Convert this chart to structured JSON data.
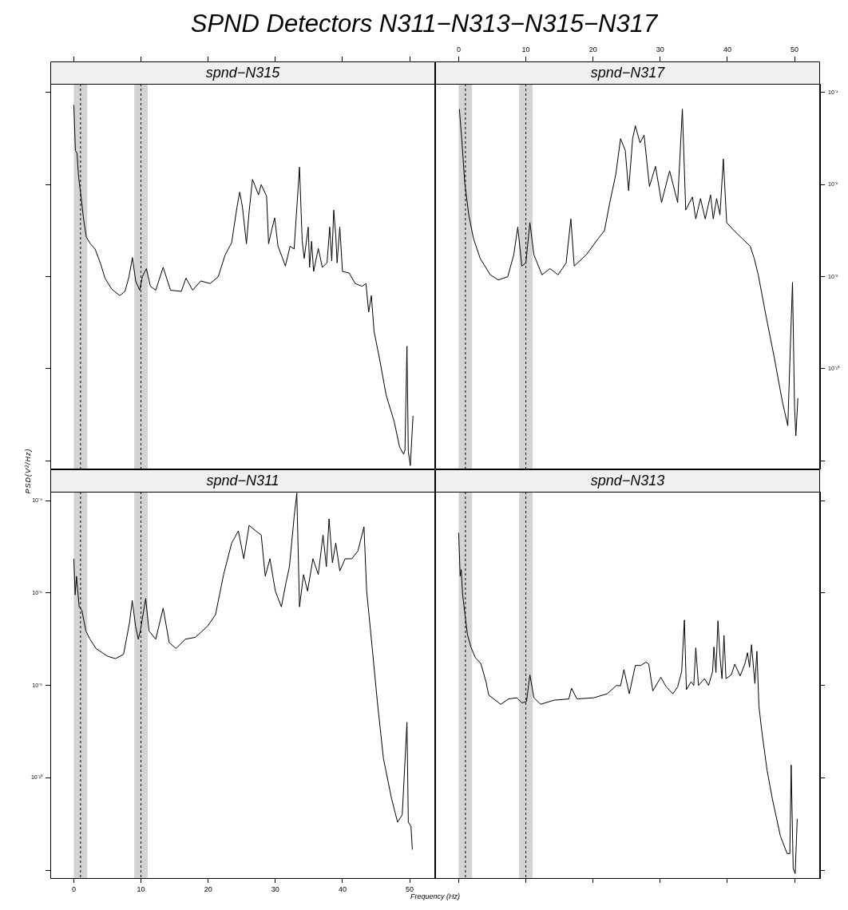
{
  "chart_data": [
    {
      "type": "line",
      "title": "SPND Detectors  N311−N313−N315−N317",
      "subtitle": "spnd−N315",
      "tick_labels": false,
      "xlim": [
        -3.5,
        53.8
      ],
      "xticks": [
        0,
        10,
        20,
        30,
        40,
        50
      ],
      "ylim": [
        6.8e-13,
        0.000155
      ],
      "log": true,
      "yticks": [
        {
          "value": 0.0001,
          "label": null
        },
        {
          "value": 1e-06,
          "label": null
        },
        {
          "value": 1e-08,
          "label": null
        },
        {
          "value": 1e-10,
          "label": null
        },
        {
          "value": 1e-12,
          "label": null
        }
      ],
      "bands": [
        {
          "axis": "x",
          "from": 0,
          "to": 2,
          "color": "#d3d3d3"
        },
        {
          "axis": "x",
          "from": 9,
          "to": 11,
          "color": "#d3d3d3"
        }
      ],
      "ref_lines": [
        {
          "axis": "x",
          "value": 1,
          "color": "#000000",
          "line_style": "dashed"
        },
        {
          "axis": "x",
          "value": 10,
          "color": "#000000",
          "line_style": "dashed"
        }
      ],
      "series": [
        {
          "color": "#000000",
          "x": [
            0,
            0.24,
            0.48,
            0.71,
            1.07,
            1.47,
            1.87,
            2.46,
            3.17,
            4.05,
            4.64,
            5.63,
            6.83,
            7.62,
            8.21,
            8.73,
            9.21,
            9.8,
            10.2,
            10.8,
            11.4,
            12.2,
            13.3,
            14.4,
            16.0,
            16.7,
            17.7,
            18.9,
            20.3,
            21.5,
            22.5,
            23.5,
            24.3,
            24.7,
            25.1,
            25.7,
            26.1,
            26.6,
            27.5,
            27.9,
            28.7,
            29.0,
            29.4,
            29.9,
            30.4,
            31.0,
            31.5,
            32.2,
            32.8,
            33.6,
            34.0,
            34.3,
            34.9,
            35.1,
            35.4,
            35.7,
            36.4,
            37.0,
            37.7,
            38.1,
            38.4,
            38.7,
            39.0,
            39.2,
            39.6,
            40.0,
            41.0,
            41.9,
            42.9,
            43.5,
            43.9,
            44.3,
            44.7,
            45.5,
            46.5,
            47.7,
            48.5,
            49.1,
            49.3,
            49.6,
            49.8,
            50.1,
            50.5
          ],
          "values": [
            5.4e-05,
            5.5e-06,
            4.8e-06,
            1.5e-06,
            5.6e-07,
            1.7e-07,
            7.2e-08,
            5.2e-08,
            4e-08,
            1.8e-08,
            9.3e-09,
            5.4e-09,
            3.9e-09,
            4.8e-09,
            1e-08,
            2.6e-08,
            8.1e-09,
            5.1e-09,
            1e-08,
            1.5e-08,
            6.2e-09,
            5.1e-09,
            1.6e-08,
            5.1e-09,
            4.8e-09,
            9.3e-09,
            5.1e-09,
            8.1e-09,
            7.1e-09,
            1e-08,
            2.9e-08,
            5.5e-08,
            3.3e-07,
            6.9e-07,
            3.3e-07,
            5.2e-08,
            2.6e-07,
            1.3e-06,
            6e-07,
            1e-06,
            5.6e-07,
            5.2e-08,
            9.5e-08,
            1.9e-07,
            4.6e-08,
            2.7e-08,
            1.7e-08,
            4.6e-08,
            4e-08,
            2.4e-06,
            6e-08,
            2.5e-08,
            1.2e-07,
            1.6e-08,
            5.9e-08,
            1.3e-08,
            4.1e-08,
            1.6e-08,
            2e-08,
            1.2e-07,
            2.2e-08,
            2.8e-07,
            7.8e-08,
            2e-08,
            1.2e-07,
            1.3e-08,
            1.2e-08,
            7.1e-09,
            6.2e-09,
            7.1e-09,
            1.7e-09,
            3.9e-09,
            6.5e-10,
            1.7e-10,
            2.7e-11,
            7.1e-12,
            2e-12,
            1.4e-12,
            1.7e-12,
            3.1e-10,
            1.6e-12,
            7.9e-13,
            9.5e-12
          ]
        }
      ]
    },
    {
      "type": "line",
      "subtitle": "spnd−N317",
      "xlim": [
        -3.5,
        53.8
      ],
      "xticks": [
        0,
        10,
        20,
        30,
        40,
        50
      ],
      "ylim": [
        6.8e-13,
        0.000155
      ],
      "log": true,
      "yticks": [
        {
          "value": 0.0001,
          "label": "10⁻⁴"
        },
        {
          "value": 1e-06,
          "label": "10⁻⁶"
        },
        {
          "value": 1e-08,
          "label": "10⁻⁸"
        },
        {
          "value": 1e-10,
          "label": "10⁻¹⁰"
        },
        {
          "value": 1e-12,
          "label": null
        }
      ],
      "bands": [
        {
          "axis": "x",
          "from": 0,
          "to": 2,
          "color": "#d3d3d3"
        },
        {
          "axis": "x",
          "from": 9,
          "to": 11,
          "color": "#d3d3d3"
        }
      ],
      "ref_lines": [
        {
          "axis": "x",
          "value": 1,
          "color": "#000000",
          "line_style": "dashed"
        },
        {
          "axis": "x",
          "value": 10,
          "color": "#000000",
          "line_style": "dashed"
        }
      ],
      "series": [
        {
          "color": "#000000",
          "x": [
            0.1,
            0.5,
            0.9,
            1.5,
            2.2,
            3.2,
            4.7,
            5.9,
            7.3,
            8.2,
            8.8,
            9.4,
            10.0,
            10.6,
            11.2,
            12.4,
            13.6,
            14.8,
            16.0,
            16.7,
            17.2,
            19.0,
            20.8,
            21.7,
            22.5,
            23.4,
            24.1,
            24.8,
            25.3,
            25.9,
            26.3,
            27.0,
            27.6,
            28.4,
            29.3,
            30.2,
            31.4,
            32.6,
            33.3,
            33.8,
            34.8,
            35.3,
            36.0,
            36.7,
            37.5,
            37.9,
            38.4,
            38.9,
            39.4,
            39.9,
            41.0,
            42.2,
            43.4,
            44.0,
            44.6,
            45.8,
            47.0,
            48.2,
            49.0,
            49.4,
            49.7,
            50.0,
            50.2,
            50.5
          ],
          "values": [
            4.4e-05,
            8.1e-06,
            1.1e-06,
            2.2e-07,
            6.8e-08,
            2.5e-08,
            1.1e-08,
            8.5e-09,
            1e-08,
            3e-08,
            1.2e-07,
            1.7e-08,
            2e-08,
            1.5e-07,
            3e-08,
            1.1e-08,
            1.5e-08,
            1.1e-08,
            2e-08,
            1.8e-07,
            1.7e-08,
            3e-08,
            6.8e-08,
            1e-07,
            4.1e-07,
            1.7e-06,
            1e-05,
            5.5e-06,
            7.4e-07,
            1e-05,
            1.9e-05,
            8.1e-06,
            1.2e-05,
            9.1e-07,
            2.5e-06,
            4.1e-07,
            2e-06,
            4.1e-07,
            4.4e-05,
            2.8e-07,
            5.4e-07,
            1.8e-07,
            5e-07,
            1.8e-07,
            6e-07,
            1.8e-07,
            5e-07,
            2.2e-07,
            3.6e-06,
            1.5e-07,
            1e-07,
            6.8e-08,
            4.6e-08,
            2.5e-08,
            1.1e-08,
            1.3e-09,
            1.7e-10,
            1.9e-11,
            5.8e-12,
            3.8e-10,
            7.6e-09,
            1.5e-11,
            3.5e-12,
            2.3e-11
          ]
        }
      ]
    },
    {
      "type": "line",
      "subtitle": "spnd−N311",
      "xlabel": "Frequency (Hz)",
      "ylabel": "PSD(V²/Hz)",
      "xlim": [
        -3.5,
        53.8
      ],
      "xticks": [
        0,
        10,
        20,
        30,
        40,
        50
      ],
      "ylim": [
        6.8e-13,
        0.000155
      ],
      "log": true,
      "yticks": [
        {
          "value": 0.0001,
          "label": "10⁻⁴"
        },
        {
          "value": 1e-06,
          "label": "10⁻⁶"
        },
        {
          "value": 1e-08,
          "label": "10⁻⁸"
        },
        {
          "value": 1e-10,
          "label": "10⁻¹⁰"
        },
        {
          "value": 1e-12,
          "label": null
        }
      ],
      "bands": [
        {
          "axis": "x",
          "from": 0,
          "to": 2,
          "color": "#d3d3d3"
        },
        {
          "axis": "x",
          "from": 9,
          "to": 11,
          "color": "#d3d3d3"
        }
      ],
      "ref_lines": [
        {
          "axis": "x",
          "value": 1,
          "color": "#000000",
          "line_style": "dashed"
        },
        {
          "axis": "x",
          "value": 10,
          "color": "#000000",
          "line_style": "dashed"
        }
      ],
      "series": [
        {
          "color": "#000000",
          "x": [
            0,
            0.2,
            0.4,
            0.8,
            1.2,
            1.8,
            2.4,
            3.3,
            5.0,
            6.2,
            7.4,
            8.3,
            8.7,
            9.2,
            9.6,
            9.9,
            10.7,
            11.2,
            12.2,
            13.3,
            14.2,
            15.2,
            16.6,
            18.1,
            19.9,
            21.1,
            22.3,
            23.5,
            24.5,
            25.3,
            26.1,
            27.1,
            27.9,
            28.5,
            29.2,
            30.0,
            30.9,
            31.6,
            32.1,
            32.8,
            33.2,
            33.6,
            34.2,
            34.8,
            35.6,
            36.4,
            37.1,
            37.6,
            38.0,
            38.5,
            39.0,
            39.6,
            40.4,
            41.4,
            42.3,
            43.2,
            43.6,
            44.3,
            45.2,
            46.1,
            47.3,
            48.2,
            48.9,
            49.6,
            49.8,
            50.2,
            50.4
          ],
          "values": [
            5.5e-06,
            9.1e-07,
            2.3e-06,
            5e-07,
            4.2e-07,
            1.5e-07,
            1e-07,
            6.3e-08,
            4.3e-08,
            3.8e-08,
            4.7e-08,
            2.3e-07,
            6.9e-07,
            1.9e-07,
            1e-07,
            1.5e-07,
            7.6e-07,
            1.5e-07,
            1e-07,
            4.7e-07,
            8.5e-08,
            6.3e-08,
            1e-07,
            1.1e-07,
            1.9e-07,
            3.4e-07,
            2.5e-06,
            1.2e-05,
            2.2e-05,
            5.5e-06,
            2.9e-05,
            2.2e-05,
            1.8e-05,
            2.3e-06,
            5.5e-06,
            1.1e-06,
            5e-07,
            1.7e-06,
            3.7e-06,
            4.4e-05,
            0.000145,
            5e-07,
            2.5e-06,
            1.1e-06,
            5.5e-06,
            2.5e-06,
            1.8e-05,
            3.7e-06,
            4e-05,
            4.5e-06,
            1.2e-05,
            3e-06,
            5.5e-06,
            5.5e-06,
            8.1e-06,
            2.7e-05,
            1.1e-06,
            1e-07,
            4.3e-09,
            2.6e-10,
            3.6e-11,
            1.1e-11,
            1.6e-11,
            1.6e-09,
            1.1e-11,
            8.9e-12,
            2.8e-12
          ]
        }
      ]
    },
    {
      "type": "line",
      "subtitle": "spnd−N313",
      "tick_labels": false,
      "xlim": [
        -3.5,
        53.8
      ],
      "xticks": [
        0,
        10,
        20,
        30,
        40,
        50
      ],
      "ylim": [
        6.8e-13,
        0.000155
      ],
      "log": true,
      "yticks": [
        {
          "value": 0.0001,
          "label": null
        },
        {
          "value": 1e-06,
          "label": null
        },
        {
          "value": 1e-08,
          "label": null
        },
        {
          "value": 1e-10,
          "label": null
        },
        {
          "value": 1e-12,
          "label": null
        }
      ],
      "bands": [
        {
          "axis": "x",
          "from": 0,
          "to": 2,
          "color": "#d3d3d3"
        },
        {
          "axis": "x",
          "from": 9,
          "to": 11,
          "color": "#d3d3d3"
        }
      ],
      "ref_lines": [
        {
          "axis": "x",
          "value": 1,
          "color": "#000000",
          "line_style": "dashed"
        },
        {
          "axis": "x",
          "value": 10,
          "color": "#000000",
          "line_style": "dashed"
        }
      ],
      "series": [
        {
          "color": "#000000",
          "x": [
            0,
            0.22,
            0.38,
            0.58,
            0.9,
            1.29,
            1.81,
            2.48,
            3.28,
            4.07,
            4.47,
            6.25,
            7.44,
            8.63,
            9.42,
            10.1,
            10.6,
            11.2,
            12.2,
            14.2,
            16.4,
            16.8,
            17.6,
            20.1,
            22.1,
            23.5,
            24.1,
            24.6,
            25.4,
            26.3,
            27.1,
            27.9,
            28.3,
            28.9,
            30.1,
            30.9,
            31.9,
            32.6,
            33.2,
            33.6,
            33.9,
            34.6,
            35.0,
            35.3,
            35.7,
            36.6,
            37.2,
            37.8,
            38.0,
            38.3,
            38.6,
            38.9,
            39.2,
            39.5,
            39.8,
            40.6,
            41.1,
            41.9,
            42.6,
            43.0,
            43.3,
            43.6,
            44.1,
            44.4,
            44.7,
            45.1,
            45.9,
            46.7,
            47.9,
            48.9,
            49.3,
            49.5,
            49.8,
            50.1,
            50.4
          ],
          "values": [
            2e-05,
            2.3e-06,
            3.2e-06,
            9.5e-07,
            3.8e-07,
            1.3e-07,
            6.8e-08,
            4e-08,
            3e-08,
            1.2e-08,
            6.2e-09,
            3.9e-09,
            5.1e-09,
            5.4e-09,
            4.2e-09,
            4.5e-09,
            1.7e-08,
            5.4e-09,
            3.9e-09,
            4.8e-09,
            5.1e-09,
            8.7e-09,
            5.1e-09,
            5.4e-09,
            6.6e-09,
            1e-08,
            9.8e-09,
            2.2e-08,
            6.6e-09,
            2.7e-08,
            2.7e-08,
            3.2e-08,
            2.9e-08,
            7.6e-09,
            1.5e-08,
            9.3e-09,
            6.6e-09,
            9.3e-09,
            2e-08,
            2.6e-07,
            8.1e-09,
            1.2e-08,
            1e-08,
            6.5e-08,
            1e-08,
            1.4e-08,
            1e-08,
            2e-08,
            6.8e-08,
            1.9e-08,
            2.5e-07,
            4.3e-08,
            1.4e-08,
            1.2e-07,
            1.4e-08,
            1.7e-08,
            2.9e-08,
            1.6e-08,
            2.9e-08,
            5.1e-08,
            2.5e-08,
            7.6e-08,
            1.1e-08,
            5.5e-08,
            3.6e-09,
            1.1e-09,
            1.5e-10,
            3.5e-11,
            5.5e-12,
            2.3e-12,
            2.3e-12,
            1.9e-10,
            1.1e-12,
            8.5e-13,
            1.3e-11
          ]
        }
      ]
    }
  ]
}
